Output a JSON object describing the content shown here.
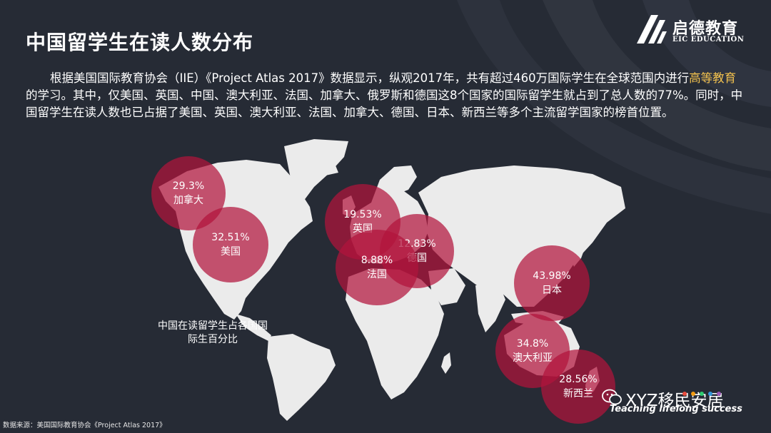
{
  "slide": {
    "title": "中国留学生在读人数分布",
    "brand": {
      "name": "启德教育",
      "subtitle": "EIC EDUCATION"
    },
    "intro": {
      "before": "根据美国国际教育协会（IIE）《Project Atlas 2017》数据显示，纵观2017年，共有超过460万国际学生在全球范围内进行",
      "highlight": "高等教育",
      "after": "的学习。其中，仅美国、英国、中国、澳大利亚、法国、加拿大、俄罗斯和德国这8个国家的国际留学生就占到了总人数的77%。同时，中国留学生在读人数也已占据了美国、英国、澳大利亚、法国、加拿大、德国、日本、新西兰等多个主流留学国家的榜首位置。"
    },
    "legend_note": "中国在读留学生占各国国际生百分比",
    "source": "数据来源：美国国际教育协会《Project Atlas 2017》",
    "tagline": "Teaching lifelong success",
    "watermark": "XYZ移民安居"
  },
  "countries": [
    {
      "id": "canada",
      "name": "加拿大",
      "percent": "29.3%"
    },
    {
      "id": "usa",
      "name": "美国",
      "percent": "32.51%"
    },
    {
      "id": "uk",
      "name": "英国",
      "percent": "19.53%"
    },
    {
      "id": "france",
      "name": "法国",
      "percent": "8.88%"
    },
    {
      "id": "germany",
      "name": "德国",
      "percent": "12.83%"
    },
    {
      "id": "japan",
      "name": "日本",
      "percent": "43.98%"
    },
    {
      "id": "australia",
      "name": "澳大利亚",
      "percent": "34.8%"
    },
    {
      "id": "newzealand",
      "name": "新西兰",
      "percent": "28.56%"
    }
  ],
  "colors": {
    "background": "#262b35",
    "bubble": "#b2143c",
    "map": "#ebebeb",
    "highlight": "#f2c14e"
  }
}
